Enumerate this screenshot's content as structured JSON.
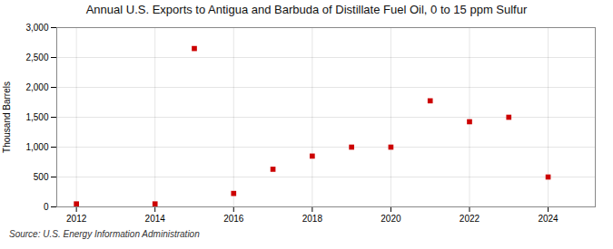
{
  "chart_data": {
    "type": "scatter",
    "title": "Annual U.S. Exports to Antigua and Barbuda of Distillate Fuel Oil, 0 to 15 ppm Sulfur",
    "ylabel": "Thousand Barrels",
    "source": "Source: U.S. Energy Information Administration",
    "x": [
      2012,
      2014,
      2015,
      2016,
      2017,
      2018,
      2019,
      2020,
      2021,
      2022,
      2023,
      2024
    ],
    "values": [
      50,
      50,
      2650,
      225,
      630,
      850,
      1000,
      1000,
      1775,
      1425,
      1500,
      500
    ],
    "color": "#cc0000",
    "marker": "square",
    "xlim": [
      2011.5,
      2025.2
    ],
    "xticks": [
      2012,
      2014,
      2016,
      2018,
      2020,
      2022,
      2024
    ],
    "ylim": [
      0,
      3000
    ],
    "yticks": [
      0,
      500,
      {
        "value": 1000,
        "label": "1,000"
      },
      {
        "value": 1500,
        "label": "1,500"
      },
      {
        "value": 2000,
        "label": "2,000"
      },
      {
        "value": 2500,
        "label": "2,500"
      },
      {
        "value": 3000,
        "label": "3,000"
      }
    ],
    "grid": true
  }
}
